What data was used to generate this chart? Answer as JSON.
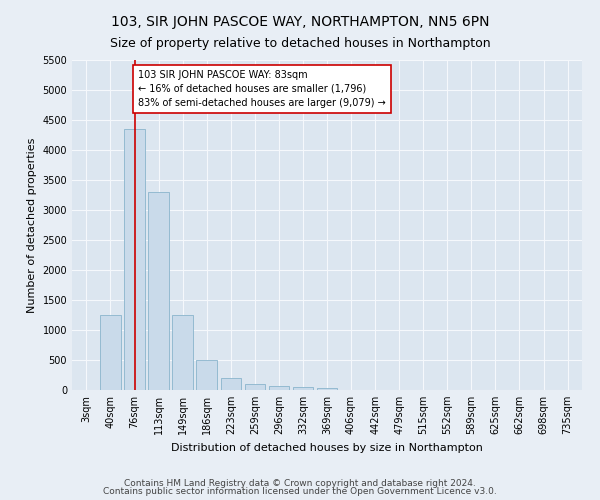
{
  "title": "103, SIR JOHN PASCOE WAY, NORTHAMPTON, NN5 6PN",
  "subtitle": "Size of property relative to detached houses in Northampton",
  "xlabel": "Distribution of detached houses by size in Northampton",
  "ylabel": "Number of detached properties",
  "categories": [
    "3sqm",
    "40sqm",
    "76sqm",
    "113sqm",
    "149sqm",
    "186sqm",
    "223sqm",
    "259sqm",
    "296sqm",
    "332sqm",
    "369sqm",
    "406sqm",
    "442sqm",
    "479sqm",
    "515sqm",
    "552sqm",
    "589sqm",
    "625sqm",
    "662sqm",
    "698sqm",
    "735sqm"
  ],
  "values": [
    0,
    1250,
    4350,
    3300,
    1250,
    500,
    200,
    100,
    75,
    50,
    40,
    0,
    0,
    0,
    0,
    0,
    0,
    0,
    0,
    0,
    0
  ],
  "bar_color": "#c9daea",
  "bar_edge_color": "#8ab4cc",
  "vline_x_index": 2,
  "vline_color": "#cc0000",
  "annotation_text": "103 SIR JOHN PASCOE WAY: 83sqm\n← 16% of detached houses are smaller (1,796)\n83% of semi-detached houses are larger (9,079) →",
  "annotation_box_color": "#ffffff",
  "annotation_box_edge": "#cc0000",
  "ylim_max": 5500,
  "yticks": [
    0,
    500,
    1000,
    1500,
    2000,
    2500,
    3000,
    3500,
    4000,
    4500,
    5000,
    5500
  ],
  "footer1": "Contains HM Land Registry data © Crown copyright and database right 2024.",
  "footer2": "Contains public sector information licensed under the Open Government Licence v3.0.",
  "fig_bg_color": "#e8eef5",
  "plot_bg_color": "#dce6f0",
  "grid_color": "#f5f8fc",
  "title_fontsize": 10,
  "subtitle_fontsize": 9,
  "axis_label_fontsize": 8,
  "tick_fontsize": 7,
  "annotation_fontsize": 7,
  "footer_fontsize": 6.5
}
